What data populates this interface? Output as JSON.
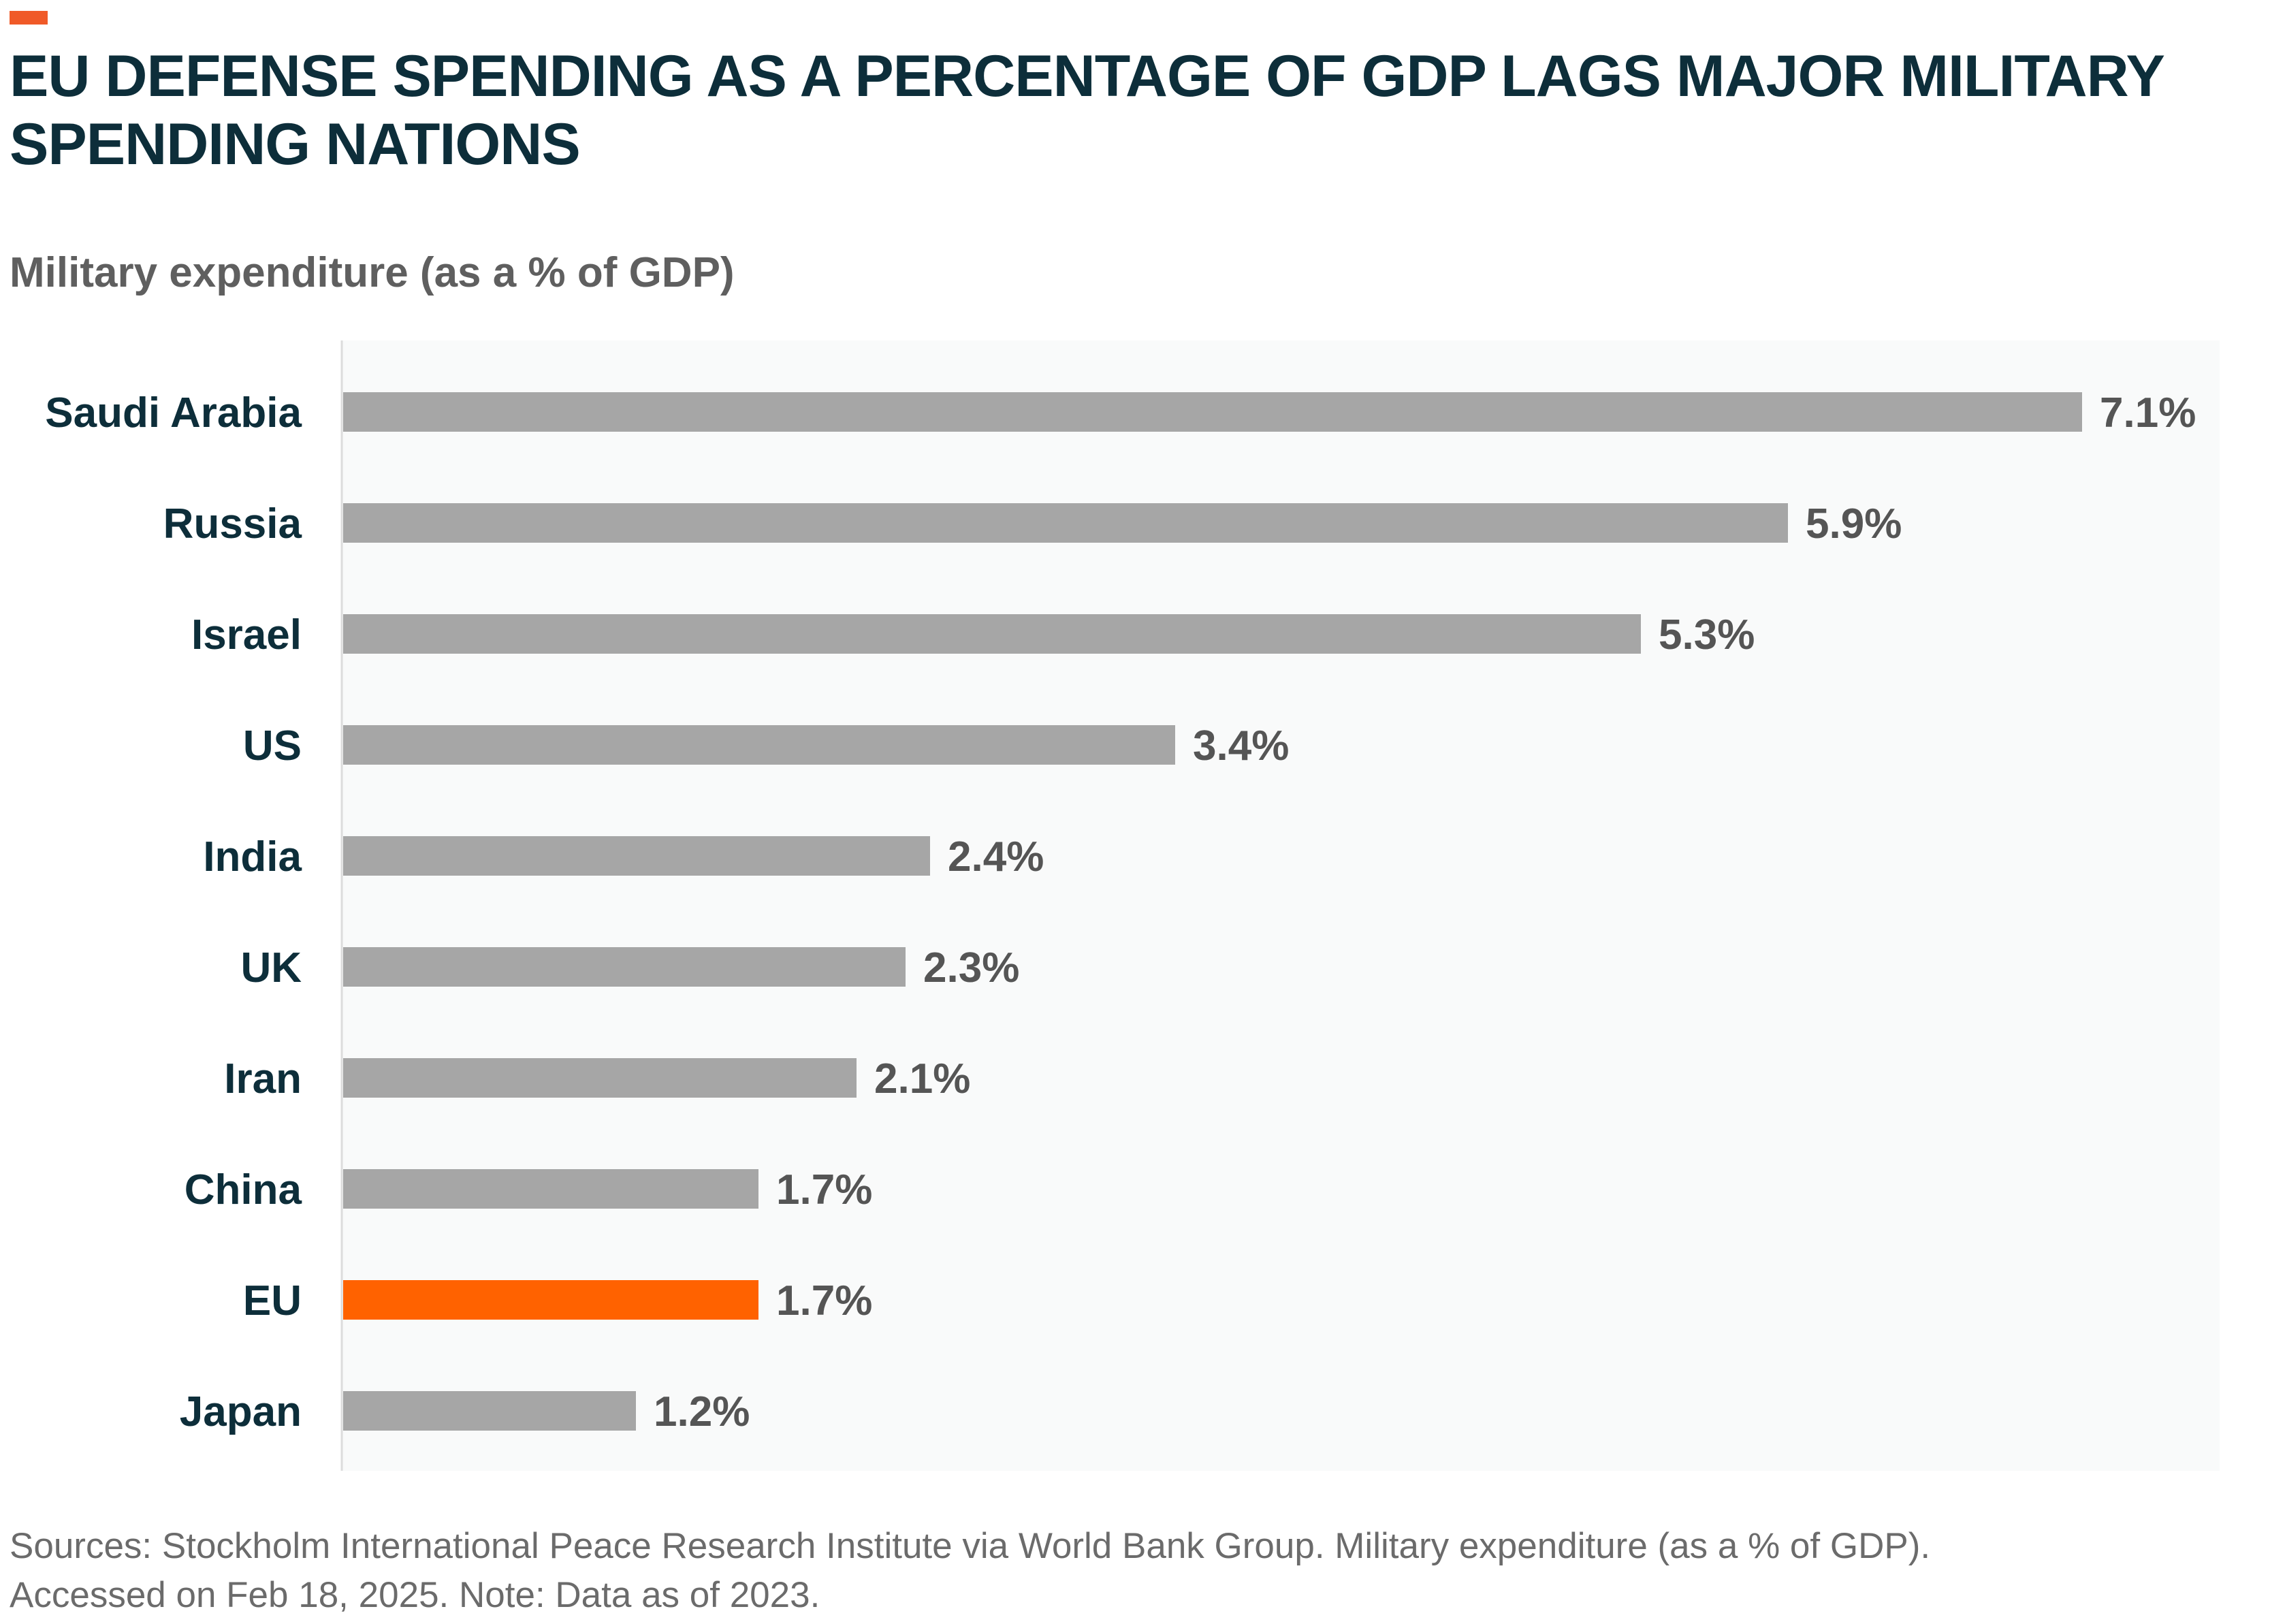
{
  "header": {
    "title": "EU DEFENSE SPENDING AS A PERCENTAGE OF GDP LAGS MAJOR MILITARY SPENDING NATIONS"
  },
  "footer": {
    "line1": "Sources: Stockholm International Peace Research Institute via World Bank Group. Military expenditure (as a % of GDP).",
    "line2": "Accessed on Feb 18, 2025. Note: Data as of 2023."
  },
  "colors": {
    "accent": "#f05a28",
    "bar": "#a6a6a6",
    "highlight": "#ff6200",
    "plot_bg": "#f9fafa",
    "axis": "#dcdcdc"
  },
  "chart_data": {
    "type": "bar",
    "orientation": "horizontal",
    "title": "EU DEFENSE SPENDING AS A PERCENTAGE OF GDP LAGS MAJOR MILITARY SPENDING NATIONS",
    "subtitle": "Military expenditure (as a % of GDP)",
    "categories": [
      "Saudi Arabia",
      "Russia",
      "Israel",
      "US",
      "India",
      "UK",
      "Iran",
      "China",
      "EU",
      "Japan"
    ],
    "values": [
      7.1,
      5.9,
      5.3,
      3.4,
      2.4,
      2.3,
      2.1,
      1.7,
      1.7,
      1.2
    ],
    "value_labels": [
      "7.1%",
      "5.9%",
      "5.3%",
      "3.4%",
      "2.4%",
      "2.3%",
      "2.1%",
      "1.7%",
      "1.7%",
      "1.2%"
    ],
    "highlight_category": "EU",
    "xlim": [
      0,
      7.6
    ],
    "grid": false,
    "legend": "none"
  }
}
